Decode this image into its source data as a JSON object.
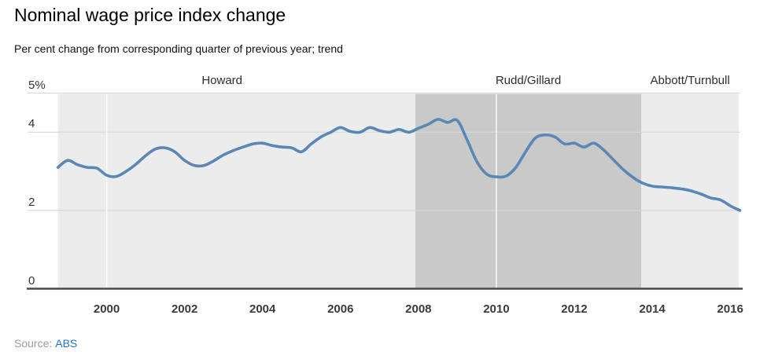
{
  "header": {
    "title": "Nominal wage price index change",
    "subtitle": "Per cent change from corresponding quarter of previous year; trend"
  },
  "source": {
    "prefix": "Source:",
    "link": "ABS"
  },
  "chart_data": {
    "type": "line",
    "title": "Nominal wage price index change",
    "subtitle": "Per cent change from corresponding quarter of previous year; trend",
    "unit": "per cent",
    "xlim": [
      1997.97,
      2016.26
    ],
    "ylim": [
      0,
      5
    ],
    "grid": "horizontal-major-only",
    "legend": "none",
    "series": [
      {
        "name": "Nominal wage price index annual change (trend)",
        "color": "#5b87b7",
        "points": [
          [
            1998.75,
            3.1
          ],
          [
            1999.0,
            3.28
          ],
          [
            1999.25,
            3.17
          ],
          [
            1999.5,
            3.1
          ],
          [
            1999.75,
            3.08
          ],
          [
            2000.0,
            2.9
          ],
          [
            2000.25,
            2.87
          ],
          [
            2000.5,
            3.0
          ],
          [
            2000.75,
            3.18
          ],
          [
            2001.0,
            3.4
          ],
          [
            2001.25,
            3.57
          ],
          [
            2001.5,
            3.6
          ],
          [
            2001.75,
            3.5
          ],
          [
            2002.0,
            3.28
          ],
          [
            2002.25,
            3.15
          ],
          [
            2002.5,
            3.15
          ],
          [
            2002.75,
            3.27
          ],
          [
            2003.0,
            3.42
          ],
          [
            2003.25,
            3.53
          ],
          [
            2003.5,
            3.62
          ],
          [
            2003.75,
            3.7
          ],
          [
            2004.0,
            3.72
          ],
          [
            2004.25,
            3.66
          ],
          [
            2004.5,
            3.62
          ],
          [
            2004.75,
            3.6
          ],
          [
            2005.0,
            3.5
          ],
          [
            2005.25,
            3.7
          ],
          [
            2005.5,
            3.88
          ],
          [
            2005.75,
            4.0
          ],
          [
            2006.0,
            4.12
          ],
          [
            2006.25,
            4.02
          ],
          [
            2006.5,
            4.0
          ],
          [
            2006.75,
            4.12
          ],
          [
            2007.0,
            4.04
          ],
          [
            2007.25,
            4.0
          ],
          [
            2007.5,
            4.07
          ],
          [
            2007.75,
            4.0
          ],
          [
            2008.0,
            4.1
          ],
          [
            2008.25,
            4.2
          ],
          [
            2008.5,
            4.33
          ],
          [
            2008.75,
            4.25
          ],
          [
            2009.0,
            4.3
          ],
          [
            2009.25,
            3.8
          ],
          [
            2009.5,
            3.25
          ],
          [
            2009.75,
            2.93
          ],
          [
            2010.0,
            2.86
          ],
          [
            2010.25,
            2.88
          ],
          [
            2010.5,
            3.1
          ],
          [
            2010.75,
            3.5
          ],
          [
            2011.0,
            3.85
          ],
          [
            2011.25,
            3.93
          ],
          [
            2011.5,
            3.88
          ],
          [
            2011.75,
            3.7
          ],
          [
            2012.0,
            3.72
          ],
          [
            2012.25,
            3.62
          ],
          [
            2012.5,
            3.72
          ],
          [
            2012.75,
            3.55
          ],
          [
            2013.0,
            3.3
          ],
          [
            2013.25,
            3.05
          ],
          [
            2013.5,
            2.85
          ],
          [
            2013.75,
            2.7
          ],
          [
            2014.0,
            2.62
          ],
          [
            2014.25,
            2.6
          ],
          [
            2014.5,
            2.58
          ],
          [
            2014.75,
            2.55
          ],
          [
            2015.0,
            2.5
          ],
          [
            2015.25,
            2.42
          ],
          [
            2015.5,
            2.32
          ],
          [
            2015.75,
            2.27
          ],
          [
            2016.0,
            2.12
          ],
          [
            2016.25,
            2.0
          ]
        ]
      }
    ],
    "y_ticks": [
      {
        "value": 5,
        "label": "5%",
        "line": "border"
      },
      {
        "value": 4,
        "label": "4",
        "line": "grid"
      },
      {
        "value": 2,
        "label": "2",
        "line": "grid"
      },
      {
        "value": 0,
        "label": "0",
        "line": "axis"
      }
    ],
    "x_ticks": [
      {
        "value": 2000,
        "label": "2000",
        "decade_line": true
      },
      {
        "value": 2002,
        "label": "2002",
        "decade_line": false
      },
      {
        "value": 2004,
        "label": "2004",
        "decade_line": false
      },
      {
        "value": 2006,
        "label": "2006",
        "decade_line": false
      },
      {
        "value": 2008,
        "label": "2008",
        "decade_line": false
      },
      {
        "value": 2010,
        "label": "2010",
        "decade_line": true
      },
      {
        "value": 2012,
        "label": "2012",
        "decade_line": false
      },
      {
        "value": 2014,
        "label": "2014",
        "decade_line": false
      },
      {
        "value": 2016,
        "label": "2016",
        "decade_line": false
      }
    ],
    "bands": [
      {
        "label": "Howard",
        "from": 1998.75,
        "to": 2007.92,
        "color": "#ececec",
        "label_center": 2002.96
      },
      {
        "label": "Rudd/Gillard",
        "from": 2007.92,
        "to": 2013.72,
        "color": "#c9c9c9",
        "label_center": 2010.82
      },
      {
        "label": "Abbott/Turnbull",
        "from": 2013.72,
        "to": 2016.22,
        "color": "#ececec",
        "label_center": 2014.97
      }
    ],
    "colors": {
      "line": "#5b87b7",
      "band_light": "#ececec",
      "band_dark": "#c9c9c9",
      "gridline": "#d9d9d9",
      "decade_line": "#ffffff",
      "axis_line": "#4a4a4a",
      "source_link": "#2176bd"
    }
  }
}
